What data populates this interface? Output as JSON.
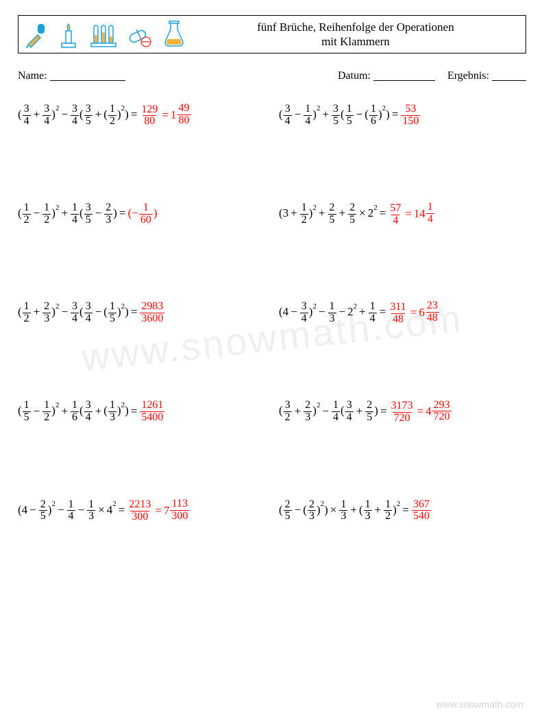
{
  "header": {
    "title_line1": "fünf Brüche, Reihenfolge der Operationen",
    "title_line2": "mit Klammern"
  },
  "meta": {
    "name_label": "Name:",
    "date_label": "Datum:",
    "score_label": "Ergebnis:",
    "name_blank_width": 110,
    "date_blank_width": 90,
    "score_blank_width": 50
  },
  "colors": {
    "answer": "#ff0000",
    "text": "#000000",
    "background": "#ffffff",
    "border": "#000000",
    "watermark": "rgba(120,120,120,0.12)",
    "footer": "rgba(0,0,0,0.18)"
  },
  "icons": [
    {
      "name": "dropper-icon",
      "stroke": "#1da1d8",
      "fill": "#fbb040"
    },
    {
      "name": "burner-icon",
      "stroke": "#1da1d8",
      "fill": "#fbb040"
    },
    {
      "name": "test-tubes-icon",
      "stroke": "#1da1d8",
      "fill": "#fbb040"
    },
    {
      "name": "pills-icon",
      "stroke": "#1da1d8",
      "fill": "#e84c3d"
    },
    {
      "name": "flask-icon",
      "stroke": "#1da1d8",
      "fill": "#fbb040"
    }
  ],
  "watermark_text": "www.snowmath.com",
  "footer_text": "www.snowmath.com",
  "problems": [
    {
      "expr": [
        {
          "t": "txt",
          "v": "("
        },
        {
          "t": "frac",
          "n": "3",
          "d": "4"
        },
        {
          "t": "op",
          "v": "+"
        },
        {
          "t": "frac",
          "n": "3",
          "d": "4"
        },
        {
          "t": "txt",
          "v": ")"
        },
        {
          "t": "sup",
          "v": "2"
        },
        {
          "t": "op",
          "v": "−"
        },
        {
          "t": "frac",
          "n": "3",
          "d": "4"
        },
        {
          "t": "txt",
          "v": "("
        },
        {
          "t": "frac",
          "n": "3",
          "d": "5"
        },
        {
          "t": "op",
          "v": "+"
        },
        {
          "t": "txt",
          "v": "("
        },
        {
          "t": "frac",
          "n": "1",
          "d": "2"
        },
        {
          "t": "txt",
          "v": ")"
        },
        {
          "t": "sup",
          "v": "2"
        },
        {
          "t": "txt",
          "v": ")"
        },
        {
          "t": "op",
          "v": "="
        }
      ],
      "ans": [
        {
          "t": "frac",
          "n": "129",
          "d": "80"
        },
        {
          "t": "op",
          "v": "="
        },
        {
          "t": "mixed",
          "w": "1",
          "n": "49",
          "d": "80"
        }
      ]
    },
    {
      "expr": [
        {
          "t": "txt",
          "v": "("
        },
        {
          "t": "frac",
          "n": "3",
          "d": "4"
        },
        {
          "t": "op",
          "v": "−"
        },
        {
          "t": "frac",
          "n": "1",
          "d": "4"
        },
        {
          "t": "txt",
          "v": ")"
        },
        {
          "t": "sup",
          "v": "2"
        },
        {
          "t": "op",
          "v": "+"
        },
        {
          "t": "frac",
          "n": "3",
          "d": "5"
        },
        {
          "t": "txt",
          "v": "("
        },
        {
          "t": "frac",
          "n": "1",
          "d": "5"
        },
        {
          "t": "op",
          "v": "−"
        },
        {
          "t": "txt",
          "v": "("
        },
        {
          "t": "frac",
          "n": "1",
          "d": "6"
        },
        {
          "t": "txt",
          "v": ")"
        },
        {
          "t": "sup",
          "v": "2"
        },
        {
          "t": "txt",
          "v": ")"
        },
        {
          "t": "op",
          "v": "="
        }
      ],
      "ans": [
        {
          "t": "frac",
          "n": "53",
          "d": "150"
        }
      ]
    },
    {
      "expr": [
        {
          "t": "txt",
          "v": "("
        },
        {
          "t": "frac",
          "n": "1",
          "d": "2"
        },
        {
          "t": "op",
          "v": "−"
        },
        {
          "t": "frac",
          "n": "1",
          "d": "2"
        },
        {
          "t": "txt",
          "v": ")"
        },
        {
          "t": "sup",
          "v": "2"
        },
        {
          "t": "op",
          "v": "+"
        },
        {
          "t": "frac",
          "n": "1",
          "d": "4"
        },
        {
          "t": "txt",
          "v": "("
        },
        {
          "t": "frac",
          "n": "3",
          "d": "5"
        },
        {
          "t": "op",
          "v": "−"
        },
        {
          "t": "frac",
          "n": "2",
          "d": "3"
        },
        {
          "t": "txt",
          "v": ")"
        },
        {
          "t": "op",
          "v": "="
        }
      ],
      "ans": [
        {
          "t": "txt",
          "v": "(−"
        },
        {
          "t": "frac",
          "n": "1",
          "d": "60"
        },
        {
          "t": "txt",
          "v": ")"
        }
      ]
    },
    {
      "expr": [
        {
          "t": "txt",
          "v": "(3"
        },
        {
          "t": "op",
          "v": "+"
        },
        {
          "t": "frac",
          "n": "1",
          "d": "2"
        },
        {
          "t": "txt",
          "v": ")"
        },
        {
          "t": "sup",
          "v": "2"
        },
        {
          "t": "op",
          "v": "+"
        },
        {
          "t": "frac",
          "n": "2",
          "d": "5"
        },
        {
          "t": "op",
          "v": "+"
        },
        {
          "t": "frac",
          "n": "2",
          "d": "5"
        },
        {
          "t": "op",
          "v": "×"
        },
        {
          "t": "txt",
          "v": "2"
        },
        {
          "t": "sup",
          "v": "2"
        },
        {
          "t": "op",
          "v": "="
        }
      ],
      "ans": [
        {
          "t": "frac",
          "n": "57",
          "d": "4"
        },
        {
          "t": "op",
          "v": "="
        },
        {
          "t": "mixed",
          "w": "14",
          "n": "1",
          "d": "4"
        }
      ]
    },
    {
      "expr": [
        {
          "t": "txt",
          "v": "("
        },
        {
          "t": "frac",
          "n": "1",
          "d": "2"
        },
        {
          "t": "op",
          "v": "+"
        },
        {
          "t": "frac",
          "n": "2",
          "d": "3"
        },
        {
          "t": "txt",
          "v": ")"
        },
        {
          "t": "sup",
          "v": "2"
        },
        {
          "t": "op",
          "v": "−"
        },
        {
          "t": "frac",
          "n": "3",
          "d": "4"
        },
        {
          "t": "txt",
          "v": "("
        },
        {
          "t": "frac",
          "n": "3",
          "d": "4"
        },
        {
          "t": "op",
          "v": "−"
        },
        {
          "t": "txt",
          "v": "("
        },
        {
          "t": "frac",
          "n": "1",
          "d": "5"
        },
        {
          "t": "txt",
          "v": ")"
        },
        {
          "t": "sup",
          "v": "2"
        },
        {
          "t": "txt",
          "v": ")"
        },
        {
          "t": "op",
          "v": "="
        }
      ],
      "ans": [
        {
          "t": "frac",
          "n": "2983",
          "d": "3600"
        }
      ]
    },
    {
      "expr": [
        {
          "t": "txt",
          "v": "(4"
        },
        {
          "t": "op",
          "v": "−"
        },
        {
          "t": "frac",
          "n": "3",
          "d": "4"
        },
        {
          "t": "txt",
          "v": ")"
        },
        {
          "t": "sup",
          "v": "2"
        },
        {
          "t": "op",
          "v": "−"
        },
        {
          "t": "frac",
          "n": "1",
          "d": "3"
        },
        {
          "t": "op",
          "v": "−"
        },
        {
          "t": "txt",
          "v": "2"
        },
        {
          "t": "sup",
          "v": "2"
        },
        {
          "t": "op",
          "v": "+"
        },
        {
          "t": "frac",
          "n": "1",
          "d": "4"
        },
        {
          "t": "op",
          "v": "="
        }
      ],
      "ans": [
        {
          "t": "frac",
          "n": "311",
          "d": "48"
        },
        {
          "t": "op",
          "v": "="
        },
        {
          "t": "mixed",
          "w": "6",
          "n": "23",
          "d": "48"
        }
      ]
    },
    {
      "expr": [
        {
          "t": "txt",
          "v": "("
        },
        {
          "t": "frac",
          "n": "1",
          "d": "5"
        },
        {
          "t": "op",
          "v": "−"
        },
        {
          "t": "frac",
          "n": "1",
          "d": "2"
        },
        {
          "t": "txt",
          "v": ")"
        },
        {
          "t": "sup",
          "v": "2"
        },
        {
          "t": "op",
          "v": "+"
        },
        {
          "t": "frac",
          "n": "1",
          "d": "6"
        },
        {
          "t": "txt",
          "v": "("
        },
        {
          "t": "frac",
          "n": "3",
          "d": "4"
        },
        {
          "t": "op",
          "v": "+"
        },
        {
          "t": "txt",
          "v": "("
        },
        {
          "t": "frac",
          "n": "1",
          "d": "3"
        },
        {
          "t": "txt",
          "v": ")"
        },
        {
          "t": "sup",
          "v": "2"
        },
        {
          "t": "txt",
          "v": ")"
        },
        {
          "t": "op",
          "v": "="
        }
      ],
      "ans": [
        {
          "t": "frac",
          "n": "1261",
          "d": "5400"
        }
      ]
    },
    {
      "expr": [
        {
          "t": "txt",
          "v": "("
        },
        {
          "t": "frac",
          "n": "3",
          "d": "2"
        },
        {
          "t": "op",
          "v": "+"
        },
        {
          "t": "frac",
          "n": "2",
          "d": "3"
        },
        {
          "t": "txt",
          "v": ")"
        },
        {
          "t": "sup",
          "v": "2"
        },
        {
          "t": "op",
          "v": "−"
        },
        {
          "t": "frac",
          "n": "1",
          "d": "4"
        },
        {
          "t": "txt",
          "v": "("
        },
        {
          "t": "frac",
          "n": "3",
          "d": "4"
        },
        {
          "t": "op",
          "v": "+"
        },
        {
          "t": "frac",
          "n": "2",
          "d": "5"
        },
        {
          "t": "txt",
          "v": ")"
        },
        {
          "t": "op",
          "v": "="
        }
      ],
      "ans": [
        {
          "t": "frac",
          "n": "3173",
          "d": "720"
        },
        {
          "t": "op",
          "v": "="
        },
        {
          "t": "mixed",
          "w": "4",
          "n": "293",
          "d": "720"
        }
      ]
    },
    {
      "expr": [
        {
          "t": "txt",
          "v": "(4"
        },
        {
          "t": "op",
          "v": "−"
        },
        {
          "t": "frac",
          "n": "2",
          "d": "5"
        },
        {
          "t": "txt",
          "v": ")"
        },
        {
          "t": "sup",
          "v": "2"
        },
        {
          "t": "op",
          "v": "−"
        },
        {
          "t": "frac",
          "n": "1",
          "d": "4"
        },
        {
          "t": "op",
          "v": "−"
        },
        {
          "t": "frac",
          "n": "1",
          "d": "3"
        },
        {
          "t": "op",
          "v": "×"
        },
        {
          "t": "txt",
          "v": "4"
        },
        {
          "t": "sup",
          "v": "2"
        },
        {
          "t": "op",
          "v": "="
        }
      ],
      "ans": [
        {
          "t": "frac",
          "n": "2213",
          "d": "300"
        },
        {
          "t": "op",
          "v": "="
        },
        {
          "t": "mixed",
          "w": "7",
          "n": "113",
          "d": "300"
        }
      ]
    },
    {
      "expr": [
        {
          "t": "txt",
          "v": "("
        },
        {
          "t": "frac",
          "n": "2",
          "d": "5"
        },
        {
          "t": "op",
          "v": "−"
        },
        {
          "t": "txt",
          "v": "("
        },
        {
          "t": "frac",
          "n": "2",
          "d": "3"
        },
        {
          "t": "txt",
          "v": ")"
        },
        {
          "t": "sup",
          "v": "2"
        },
        {
          "t": "txt",
          "v": ")"
        },
        {
          "t": "op",
          "v": "×"
        },
        {
          "t": "frac",
          "n": "1",
          "d": "3"
        },
        {
          "t": "op",
          "v": "+"
        },
        {
          "t": "txt",
          "v": "("
        },
        {
          "t": "frac",
          "n": "1",
          "d": "3"
        },
        {
          "t": "op",
          "v": "+"
        },
        {
          "t": "frac",
          "n": "1",
          "d": "2"
        },
        {
          "t": "txt",
          "v": ")"
        },
        {
          "t": "sup",
          "v": "2"
        },
        {
          "t": "op",
          "v": "="
        }
      ],
      "ans": [
        {
          "t": "frac",
          "n": "367",
          "d": "540"
        }
      ]
    }
  ]
}
